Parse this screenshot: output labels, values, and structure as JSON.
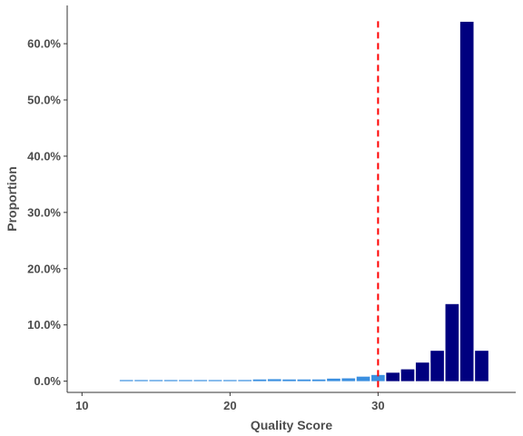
{
  "chart_data": {
    "type": "bar",
    "xlabel": "Quality Score",
    "ylabel": "Proportion",
    "xlim": [
      9,
      39.3
    ],
    "ylim": [
      -2.0,
      66.8
    ],
    "x_ticks": [
      10,
      20,
      30
    ],
    "x_tick_labels": [
      "10",
      "20",
      "30"
    ],
    "y_ticks": [
      0,
      10,
      20,
      30,
      40,
      50,
      60
    ],
    "y_tick_labels": [
      "0.0%",
      "10.0%",
      "20.0%",
      "30.0%",
      "40.0%",
      "50.0%",
      "60.0%"
    ],
    "grid": false,
    "threshold": {
      "x": 30,
      "color": "#ff0000",
      "style": "dashed"
    },
    "colors": {
      "below_threshold": "#3a8fe0",
      "above_threshold": "#00007f",
      "axis": "#333333"
    },
    "x": [
      13,
      14,
      15,
      16,
      17,
      18,
      19,
      20,
      21,
      22,
      23,
      24,
      25,
      26,
      27,
      28,
      29,
      30,
      31,
      32,
      33,
      34,
      35,
      36,
      37
    ],
    "values": [
      0.1,
      0.1,
      0.1,
      0.1,
      0.1,
      0.1,
      0.1,
      0.15,
      0.2,
      0.3,
      0.35,
      0.3,
      0.3,
      0.3,
      0.45,
      0.5,
      0.8,
      1.1,
      1.5,
      2.1,
      3.3,
      5.4,
      13.7,
      63.9,
      5.4
    ]
  }
}
